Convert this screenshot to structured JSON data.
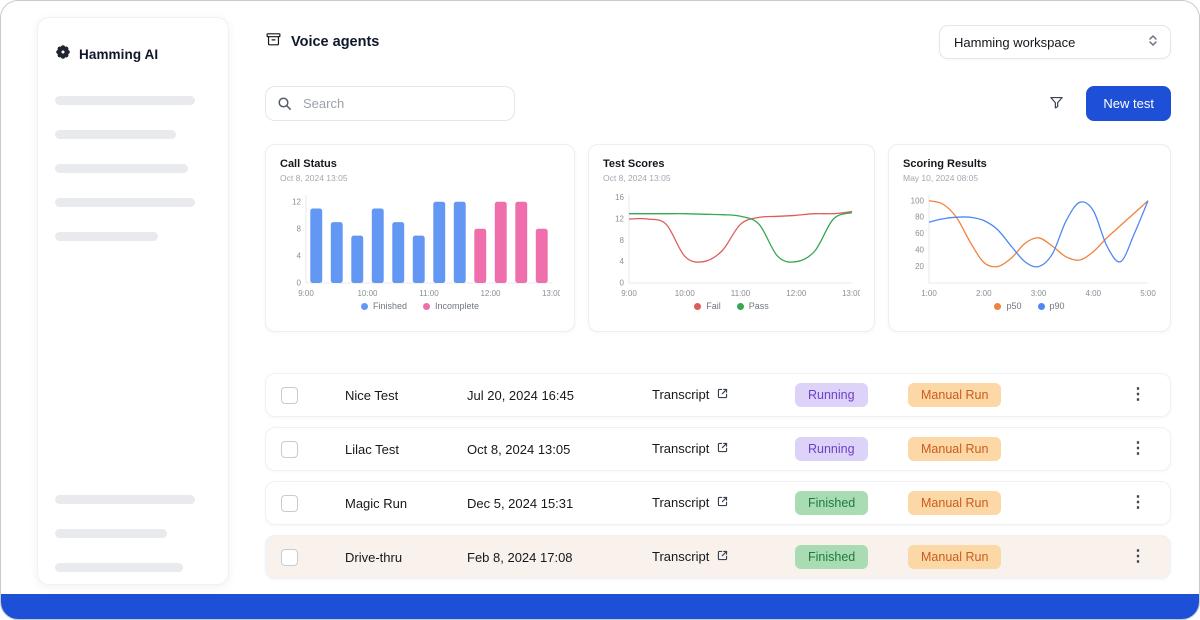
{
  "app": {
    "name": "Hamming AI"
  },
  "header": {
    "title": "Voice agents",
    "workspace_label": "Hamming workspace"
  },
  "toolbar": {
    "search_placeholder": "Search",
    "new_test_label": "New test"
  },
  "icons": {
    "logo": "gear-flower",
    "voice_agents": "box",
    "workspace_chevrons": "up-down-chevrons",
    "search": "magnifier",
    "filter": "funnel",
    "transcript": "external-link",
    "kebab": "⋮"
  },
  "colors": {
    "primary": "#1d4fd7",
    "bar_finished": "#6297f3",
    "bar_incomplete": "#ef6eac",
    "fail": "#df5c5c",
    "pass": "#34a853",
    "p50": "#f2813d",
    "p90": "#4f87f6"
  },
  "chart_data": [
    {
      "type": "bar",
      "title": "Call Status",
      "subtitle": "Oct 8, 2024 13:05",
      "ymin": 0,
      "ymax": 13,
      "yticks": [
        0,
        4,
        8,
        12
      ],
      "xticks": [
        "9:00",
        "10:00",
        "11:00",
        "12:00",
        "13:00"
      ],
      "legend_position": "bottom",
      "series": [
        {
          "name": "Finished",
          "color": "#6297f3",
          "values": [
            11,
            9,
            7,
            11,
            9,
            7,
            12,
            12
          ]
        },
        {
          "name": "Incomplete",
          "color": "#ef6eac",
          "values": [
            8,
            12,
            12,
            8
          ]
        }
      ]
    },
    {
      "type": "line",
      "title": "Test Scores",
      "subtitle": "Oct 8, 2024 13:05",
      "ymin": 0,
      "ymax": 16.5,
      "yticks": [
        0,
        4,
        8,
        12,
        16
      ],
      "xticks": [
        "9:00",
        "10:00",
        "11:00",
        "12:00",
        "13:00"
      ],
      "legend_position": "bottom",
      "series": [
        {
          "name": "Fail",
          "color": "#df5c5c",
          "values": [
            12,
            12,
            11,
            5,
            4,
            6,
            11,
            12.3,
            12.5,
            12.7,
            13,
            13,
            13.4
          ]
        },
        {
          "name": "Pass",
          "color": "#34a853",
          "values": [
            13,
            13,
            13,
            13,
            12.9,
            12.8,
            12.5,
            11,
            5,
            4,
            6,
            12,
            13.2
          ]
        }
      ]
    },
    {
      "type": "line",
      "title": "Scoring Results",
      "subtitle": "May 10, 2024 08:05",
      "ymin": 0,
      "ymax": 107,
      "yticks": [
        20,
        40,
        60,
        80,
        100
      ],
      "xticks": [
        "1:00",
        "2:00",
        "3:00",
        "4:00",
        "5:00"
      ],
      "legend_position": "bottom",
      "series": [
        {
          "name": "p50",
          "color": "#f2813d",
          "values": [
            100,
            96,
            80,
            50,
            25,
            20,
            30,
            48,
            55,
            45,
            32,
            28,
            38,
            55,
            70,
            85,
            100
          ]
        },
        {
          "name": "p90",
          "color": "#4f87f6",
          "values": [
            74,
            78,
            80,
            80,
            76,
            65,
            45,
            26,
            20,
            35,
            75,
            98,
            88,
            45,
            26,
            60,
            100
          ]
        }
      ]
    }
  ],
  "table": {
    "rows": [
      {
        "name": "Nice Test",
        "date": "Jul 20, 2024 16:45",
        "transcript_label": "Transcript",
        "status": {
          "label": "Running",
          "type": "running"
        },
        "run_label": "Manual Run",
        "highlighted": false
      },
      {
        "name": "Lilac Test",
        "date": "Oct 8, 2024 13:05",
        "transcript_label": "Transcript",
        "status": {
          "label": "Running",
          "type": "running"
        },
        "run_label": "Manual Run",
        "highlighted": false
      },
      {
        "name": "Magic Run",
        "date": "Dec 5, 2024 15:31",
        "transcript_label": "Transcript",
        "status": {
          "label": "Finished",
          "type": "finished"
        },
        "run_label": "Manual Run",
        "highlighted": false
      },
      {
        "name": "Drive-thru",
        "date": "Feb 8, 2024 17:08",
        "transcript_label": "Transcript",
        "status": {
          "label": "Finished",
          "type": "finished"
        },
        "run_label": "Manual Run",
        "highlighted": true
      }
    ]
  }
}
